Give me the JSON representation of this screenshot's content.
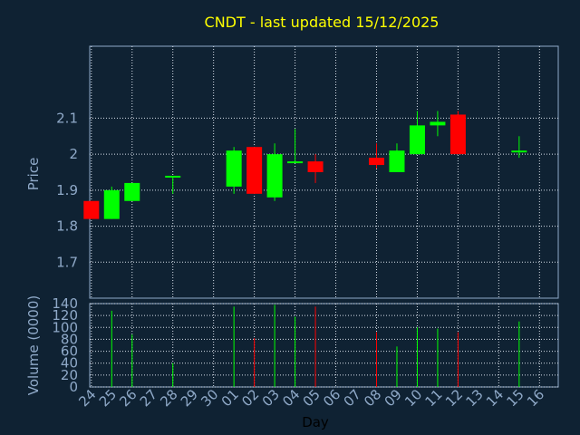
{
  "chart_data": [
    {
      "type": "candlestick",
      "title": "CNDT - last updated 15/12/2025",
      "ylabel": "Price",
      "ylim": [
        1.6,
        2.3
      ],
      "yticks": [
        1.7,
        1.8,
        1.9,
        2,
        2.1
      ],
      "grid": true,
      "up_color": "#00ff00",
      "down_color": "#ff0000",
      "candles": [
        {
          "day": "24",
          "open": 1.87,
          "high": 1.87,
          "low": 1.82,
          "close": 1.82
        },
        {
          "day": "25",
          "open": 1.82,
          "high": 1.91,
          "low": 1.82,
          "close": 1.9
        },
        {
          "day": "26",
          "open": 1.87,
          "high": 1.92,
          "low": 1.87,
          "close": 1.92
        },
        {
          "day": "28",
          "open": 1.94,
          "high": 1.94,
          "low": 1.89,
          "close": 1.94
        },
        {
          "day": "01",
          "open": 1.91,
          "high": 2.02,
          "low": 1.89,
          "close": 2.01
        },
        {
          "day": "02",
          "open": 2.02,
          "high": 2.02,
          "low": 1.89,
          "close": 1.89
        },
        {
          "day": "03",
          "open": 1.88,
          "high": 2.03,
          "low": 1.87,
          "close": 2.0
        },
        {
          "day": "04",
          "open": 1.98,
          "high": 2.07,
          "low": 1.98,
          "close": 1.98
        },
        {
          "day": "05",
          "open": 1.98,
          "high": 2.0,
          "low": 1.92,
          "close": 1.95
        },
        {
          "day": "08",
          "open": 1.99,
          "high": 2.03,
          "low": 1.96,
          "close": 1.97
        },
        {
          "day": "09",
          "open": 1.95,
          "high": 2.03,
          "low": 1.95,
          "close": 2.01
        },
        {
          "day": "10",
          "open": 2.0,
          "high": 2.12,
          "low": 2.0,
          "close": 2.08
        },
        {
          "day": "11",
          "open": 2.08,
          "high": 2.12,
          "low": 2.05,
          "close": 2.09
        },
        {
          "day": "12",
          "open": 2.11,
          "high": 2.12,
          "low": 2.0,
          "close": 2.0
        },
        {
          "day": "15",
          "open": 2.01,
          "high": 2.05,
          "low": 1.99,
          "close": 2.01
        }
      ]
    },
    {
      "type": "bar",
      "ylabel": "Volume (0000)",
      "xlabel": "Day",
      "ylim": [
        0,
        140
      ],
      "yticks": [
        0,
        20,
        40,
        60,
        80,
        100,
        120,
        140
      ],
      "categories": [
        "24",
        "25",
        "26",
        "27",
        "28",
        "29",
        "30",
        "01",
        "02",
        "03",
        "04",
        "05",
        "06",
        "07",
        "08",
        "09",
        "10",
        "11",
        "12",
        "13",
        "14",
        "15",
        "16"
      ],
      "volumes": [
        {
          "day": "25",
          "value": 128,
          "color": "#00ff00"
        },
        {
          "day": "26",
          "value": 88,
          "color": "#00ff00"
        },
        {
          "day": "28",
          "value": 40,
          "color": "#00ff00"
        },
        {
          "day": "01",
          "value": 135,
          "color": "#00ff00"
        },
        {
          "day": "02",
          "value": 82,
          "color": "#ff0000"
        },
        {
          "day": "03",
          "value": 138,
          "color": "#00ff00"
        },
        {
          "day": "04",
          "value": 118,
          "color": "#00ff00"
        },
        {
          "day": "05",
          "value": 135,
          "color": "#ff0000"
        },
        {
          "day": "08",
          "value": 92,
          "color": "#ff0000"
        },
        {
          "day": "09",
          "value": 68,
          "color": "#00ff00"
        },
        {
          "day": "10",
          "value": 100,
          "color": "#00ff00"
        },
        {
          "day": "11",
          "value": 98,
          "color": "#00ff00"
        },
        {
          "day": "12",
          "value": 92,
          "color": "#ff0000"
        },
        {
          "day": "15",
          "value": 110,
          "color": "#00ff00"
        }
      ]
    }
  ]
}
